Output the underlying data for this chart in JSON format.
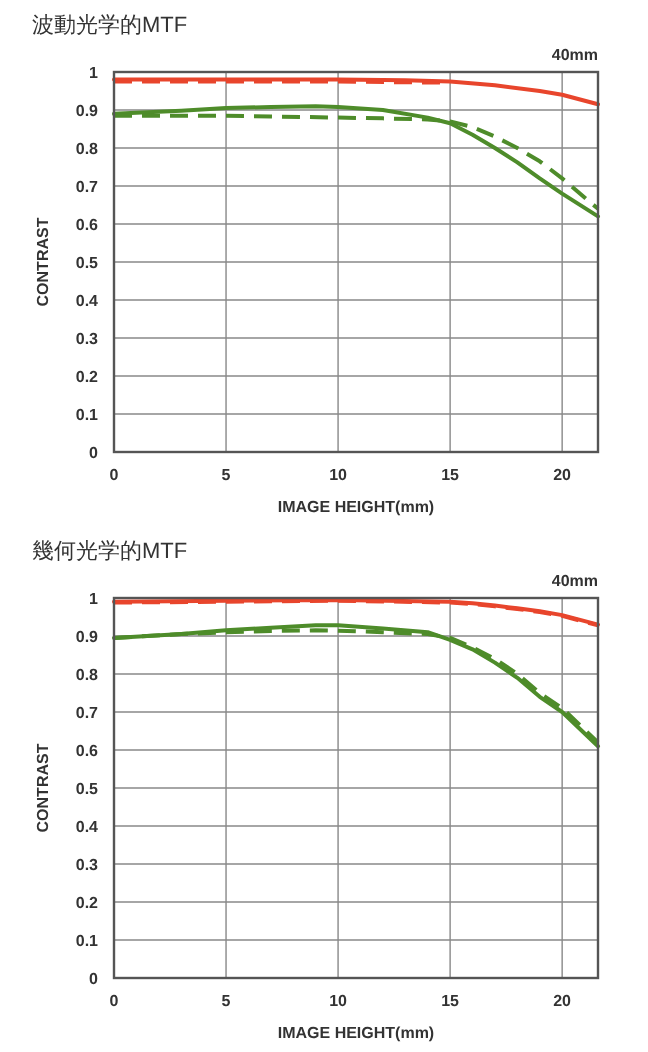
{
  "chart_data": [
    {
      "type": "line",
      "title": "波動光学的MTF",
      "xlabel": "IMAGE HEIGHT(mm)",
      "ylabel": "CONTRAST",
      "annotations": [
        "40mm"
      ],
      "xlim": [
        0,
        21.6
      ],
      "ylim": [
        0,
        1
      ],
      "xticks": [
        0,
        5,
        10,
        15,
        20
      ],
      "yticks": [
        0,
        0.1,
        0.2,
        0.3,
        0.4,
        0.5,
        0.6,
        0.7,
        0.8,
        0.9,
        1
      ],
      "grid": true,
      "series": [
        {
          "color": "#e8452c",
          "line_style": "solid",
          "x": [
            0,
            5,
            10,
            13,
            15,
            17,
            19,
            20,
            21.6
          ],
          "values": [
            0.98,
            0.98,
            0.98,
            0.978,
            0.975,
            0.965,
            0.95,
            0.94,
            0.915
          ]
        },
        {
          "color": "#e8452c",
          "line_style": "dashed",
          "x": [
            0,
            5,
            10,
            13,
            15
          ],
          "values": [
            0.975,
            0.975,
            0.975,
            0.973,
            0.972
          ]
        },
        {
          "color": "#4e8c2a",
          "line_style": "solid",
          "x": [
            0,
            3,
            5,
            7,
            9,
            10,
            12,
            14,
            15,
            16,
            17,
            18,
            19,
            20,
            21.6
          ],
          "values": [
            0.89,
            0.898,
            0.905,
            0.908,
            0.91,
            0.908,
            0.9,
            0.88,
            0.865,
            0.835,
            0.8,
            0.762,
            0.72,
            0.68,
            0.62
          ]
        },
        {
          "color": "#4e8c2a",
          "line_style": "dashed",
          "x": [
            0,
            3,
            5,
            7,
            10,
            12,
            14,
            15,
            16,
            17,
            18,
            19,
            20,
            21.6
          ],
          "values": [
            0.885,
            0.885,
            0.885,
            0.883,
            0.88,
            0.878,
            0.875,
            0.87,
            0.855,
            0.83,
            0.8,
            0.765,
            0.72,
            0.64
          ]
        }
      ]
    },
    {
      "type": "line",
      "title": "幾何光学的MTF",
      "xlabel": "IMAGE HEIGHT(mm)",
      "ylabel": "CONTRAST",
      "annotations": [
        "40mm"
      ],
      "xlim": [
        0,
        21.6
      ],
      "ylim": [
        0,
        1
      ],
      "xticks": [
        0,
        5,
        10,
        15,
        20
      ],
      "yticks": [
        0,
        0.1,
        0.2,
        0.3,
        0.4,
        0.5,
        0.6,
        0.7,
        0.8,
        0.9,
        1
      ],
      "grid": true,
      "series": [
        {
          "color": "#e8452c",
          "line_style": "solid",
          "x": [
            0,
            5,
            10,
            15,
            16,
            17,
            18,
            19,
            20,
            21.6
          ],
          "values": [
            0.99,
            0.993,
            0.995,
            0.99,
            0.986,
            0.98,
            0.973,
            0.965,
            0.955,
            0.93
          ]
        },
        {
          "color": "#e8452c",
          "line_style": "dashed",
          "x": [
            0,
            5,
            10,
            15,
            16,
            17,
            18,
            19,
            20,
            21.6
          ],
          "values": [
            0.988,
            0.99,
            0.993,
            0.988,
            0.984,
            0.978,
            0.971,
            0.963,
            0.953,
            0.928
          ]
        },
        {
          "color": "#4e8c2a",
          "line_style": "solid",
          "x": [
            0,
            3,
            5,
            7,
            9,
            10,
            12,
            14,
            15,
            16,
            17,
            18,
            19,
            20,
            21.6
          ],
          "values": [
            0.895,
            0.905,
            0.915,
            0.922,
            0.928,
            0.928,
            0.92,
            0.91,
            0.89,
            0.865,
            0.83,
            0.79,
            0.74,
            0.7,
            0.61
          ]
        },
        {
          "color": "#4e8c2a",
          "line_style": "dashed",
          "x": [
            0,
            3,
            5,
            7,
            9,
            10,
            12,
            14,
            15,
            16,
            17,
            18,
            19,
            20,
            21.6
          ],
          "values": [
            0.895,
            0.905,
            0.91,
            0.913,
            0.915,
            0.914,
            0.91,
            0.905,
            0.895,
            0.87,
            0.84,
            0.8,
            0.75,
            0.71,
            0.62
          ]
        }
      ]
    }
  ]
}
